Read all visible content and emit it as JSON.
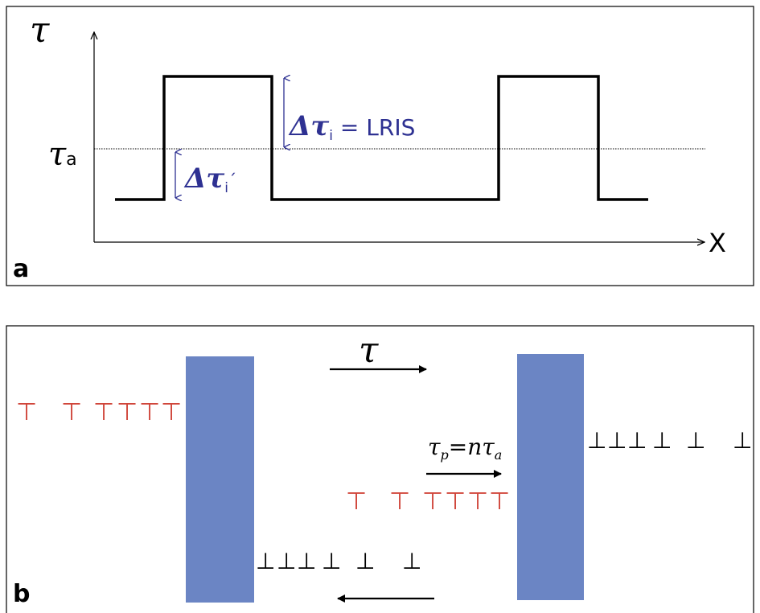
{
  "panel_a": {
    "label": "a",
    "y_axis_label": "τ",
    "x_axis_label": "X",
    "threshold_symbol": "τ",
    "threshold_subscript": "a",
    "delta_large_symbol": "Δτ",
    "delta_large_subscript": "i",
    "delta_large_eq": " = LRIS",
    "delta_small_symbol": "Δτ",
    "delta_small_subscript": "i",
    "delta_small_prime": "´"
  },
  "panel_b": {
    "label": "b",
    "top_arrow_symbol": "τ",
    "middle_arrow_tau": "τ",
    "middle_arrow_p": "p",
    "middle_arrow_eq": "=nτ",
    "middle_arrow_a": "a",
    "dislocation_glyph_red": "⊤",
    "dislocation_glyph_black": "⊥"
  },
  "colors": {
    "frame": "#000000",
    "annotation_blue": "#2e3192",
    "obstacle_fill": "#6b85c4",
    "dislocation_red": "#d0453a",
    "dislocation_black": "#000000"
  }
}
